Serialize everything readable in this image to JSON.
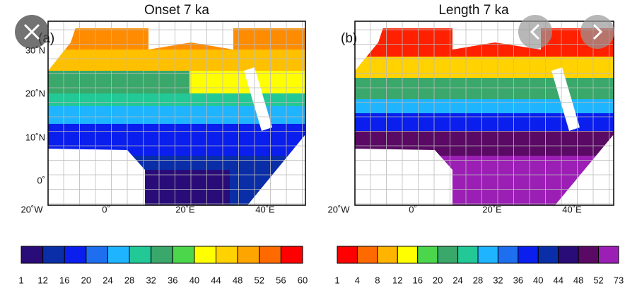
{
  "panels": [
    {
      "label": "(a)",
      "title": "Onset 7 ka",
      "colorbar": {
        "ticks": [
          1,
          12,
          16,
          20,
          24,
          28,
          32,
          36,
          40,
          44,
          48,
          52,
          56,
          60
        ],
        "colors": [
          "#2a0c78",
          "#0a2ea8",
          "#0a1eee",
          "#1e6ef0",
          "#1eb4ff",
          "#22c896",
          "#3aa86a",
          "#4bd64b",
          "#ffff00",
          "#ffd200",
          "#ffa500",
          "#ff6a00",
          "#ff0000"
        ]
      }
    },
    {
      "label": "(b)",
      "title": "Length 7 ka",
      "colorbar": {
        "ticks": [
          1,
          4,
          8,
          12,
          16,
          20,
          24,
          28,
          32,
          36,
          40,
          44,
          48,
          52,
          73
        ],
        "colors": [
          "#ff0000",
          "#ff6a00",
          "#ffb400",
          "#ffff00",
          "#4bd64b",
          "#3aa86a",
          "#22c896",
          "#1eb4ff",
          "#1e6ef0",
          "#0a1eee",
          "#0a2ea8",
          "#2a0c78",
          "#5a0a64",
          "#9b1fb4"
        ]
      }
    }
  ],
  "lat_labels": [
    "30˚N",
    "20˚N",
    "10˚N",
    "0˚"
  ],
  "lon_labels": [
    "20˚W",
    "0˚",
    "20˚E",
    "40˚E"
  ]
}
